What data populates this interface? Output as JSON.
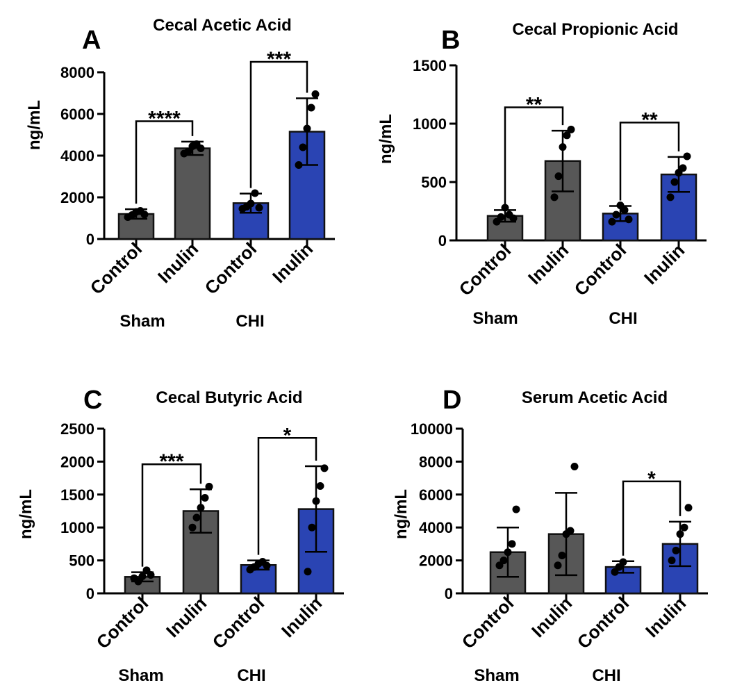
{
  "colors": {
    "sham": "#575757",
    "chi": "#2a44b3",
    "point": "#000000"
  },
  "chart_data": [
    {
      "type": "bar",
      "letter": "A",
      "title": "Cecal Acetic Acid",
      "ylabel": "ng/mL",
      "ylim": [
        0,
        8000
      ],
      "yticks": [
        "0",
        "2000",
        "4000",
        "6000",
        "8000"
      ],
      "categories": [
        "Control",
        "Inulin",
        "Control",
        "Inulin"
      ],
      "groups": [
        "Sham",
        "CHI"
      ],
      "values": [
        1200,
        4350,
        1720,
        5150
      ],
      "errors": [
        230,
        320,
        460,
        1600
      ],
      "points": [
        [
          1050,
          1150,
          1300,
          1350,
          1180
        ],
        [
          4100,
          4200,
          4450,
          4550,
          4350
        ],
        [
          1450,
          1550,
          1700,
          2200,
          1500
        ],
        [
          3550,
          4400,
          5300,
          6300,
          6950
        ]
      ],
      "significance": [
        {
          "pair": [
            0,
            1
          ],
          "label": "****",
          "y": 5650
        },
        {
          "pair": [
            2,
            3
          ],
          "label": "***",
          "y": 8500
        }
      ]
    },
    {
      "type": "bar",
      "letter": "B",
      "title": "Cecal Propionic Acid",
      "ylabel": "ng/mL",
      "ylim": [
        0,
        1500
      ],
      "yticks": [
        "0",
        "500",
        "1000",
        "1500"
      ],
      "categories": [
        "Control",
        "Inulin",
        "Control",
        "Inulin"
      ],
      "groups": [
        "Sham",
        "CHI"
      ],
      "values": [
        210,
        680,
        230,
        565
      ],
      "errors": [
        50,
        260,
        65,
        150
      ],
      "points": [
        [
          160,
          200,
          280,
          220,
          190
        ],
        [
          370,
          550,
          800,
          900,
          950
        ],
        [
          160,
          220,
          300,
          260,
          180
        ],
        [
          370,
          500,
          580,
          620,
          720
        ]
      ],
      "significance": [
        {
          "pair": [
            0,
            1
          ],
          "label": "**",
          "y": 1140
        },
        {
          "pair": [
            2,
            3
          ],
          "label": "**",
          "y": 1010
        }
      ]
    },
    {
      "type": "bar",
      "letter": "C",
      "title": "Cecal Butyric Acid",
      "ylabel": "ng/mL",
      "ylim": [
        0,
        2500
      ],
      "yticks": [
        "0",
        "500",
        "1000",
        "1500",
        "2000",
        "2500"
      ],
      "categories": [
        "Control",
        "Inulin",
        "Control",
        "Inulin"
      ],
      "groups": [
        "Sham",
        "CHI"
      ],
      "values": [
        250,
        1250,
        430,
        1280
      ],
      "errors": [
        70,
        330,
        70,
        650
      ],
      "points": [
        [
          230,
          180,
          260,
          350,
          280
        ],
        [
          1000,
          1150,
          1300,
          1450,
          1620
        ],
        [
          360,
          400,
          450,
          480,
          420
        ],
        [
          330,
          1000,
          1400,
          1630,
          1900
        ]
      ],
      "significance": [
        {
          "pair": [
            0,
            1
          ],
          "label": "***",
          "y": 1960
        },
        {
          "pair": [
            2,
            3
          ],
          "label": "*",
          "y": 2360
        }
      ]
    },
    {
      "type": "bar",
      "letter": "D",
      "title": "Serum Acetic Acid",
      "ylabel": "ng/mL",
      "ylim": [
        0,
        10000
      ],
      "yticks": [
        "0",
        "2000",
        "4000",
        "6000",
        "8000",
        "10000"
      ],
      "categories": [
        "Control",
        "Inulin",
        "Control",
        "Inulin"
      ],
      "groups": [
        "Sham",
        "CHI"
      ],
      "values": [
        2500,
        3600,
        1600,
        3000
      ],
      "errors": [
        1500,
        2500,
        350,
        1350
      ],
      "points": [
        [
          1700,
          2000,
          2500,
          3000,
          5100
        ],
        [
          1700,
          2300,
          3600,
          3800,
          7700
        ],
        [
          1300,
          1600,
          1900
        ],
        [
          2000,
          2600,
          3600,
          4000,
          5200
        ]
      ],
      "significance": [
        {
          "pair": [
            2,
            3
          ],
          "label": "*",
          "y": 6800
        }
      ]
    }
  ]
}
